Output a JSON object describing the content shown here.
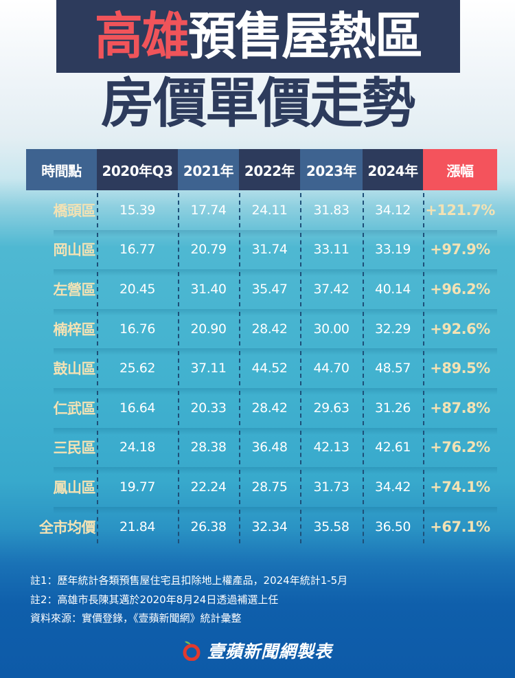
{
  "title": {
    "line1_highlight": "高雄",
    "line1_rest": "預售屋熱區",
    "line2": "房價單價走勢"
  },
  "colors": {
    "navy": "#2d3b5c",
    "steel_blue": "#3e6390",
    "accent_red": "#f4535c",
    "cream": "#f3e2b4",
    "teal_bg": "#41b1cf",
    "deep_blue": "#0d5aa8"
  },
  "table": {
    "headers": [
      "時間點",
      "2020年Q3",
      "2021年",
      "2022年",
      "2023年",
      "2024年",
      "漲幅"
    ],
    "rows": [
      [
        "橋頭區",
        "15.39",
        "17.74",
        "24.11",
        "31.83",
        "34.12",
        "+121.7%"
      ],
      [
        "岡山區",
        "16.77",
        "20.79",
        "31.74",
        "33.11",
        "33.19",
        "+97.9%"
      ],
      [
        "左營區",
        "20.45",
        "31.40",
        "35.47",
        "37.42",
        "40.14",
        "+96.2%"
      ],
      [
        "楠梓區",
        "16.76",
        "20.90",
        "28.42",
        "30.00",
        "32.29",
        "+92.6%"
      ],
      [
        "鼓山區",
        "25.62",
        "37.11",
        "44.52",
        "44.70",
        "48.57",
        "+89.5%"
      ],
      [
        "仁武區",
        "16.64",
        "20.33",
        "28.42",
        "29.63",
        "31.26",
        "+87.8%"
      ],
      [
        "三民區",
        "24.18",
        "28.38",
        "36.48",
        "42.13",
        "42.61",
        "+76.2%"
      ],
      [
        "鳳山區",
        "19.77",
        "22.24",
        "28.75",
        "31.73",
        "34.42",
        "+74.1%"
      ],
      [
        "全市均價",
        "21.84",
        "26.38",
        "32.34",
        "35.58",
        "36.50",
        "+67.1%"
      ]
    ]
  },
  "notes": [
    "註1：歷年統計各類預售屋住宅且扣除地上權產品，2024年統計1-5月",
    "註2：高雄市長陳其邁於2020年8月24日透過補選上任",
    "資料來源：實價登錄，《壹蘋新聞網》統計彙整"
  ],
  "footer": {
    "brand_icon": "apple-icon",
    "brand_text": "壹蘋新聞網製表"
  },
  "chart_data": {
    "type": "table",
    "title": "高雄預售屋熱區 房價單價走勢",
    "columns": [
      "時間點",
      "2020年Q3",
      "2021年",
      "2022年",
      "2023年",
      "2024年",
      "漲幅"
    ],
    "categories": [
      "2020年Q3",
      "2021年",
      "2022年",
      "2023年",
      "2024年"
    ],
    "series": [
      {
        "name": "橋頭區",
        "values": [
          15.39,
          17.74,
          24.11,
          31.83,
          34.12
        ],
        "change": "+121.7%"
      },
      {
        "name": "岡山區",
        "values": [
          16.77,
          20.79,
          31.74,
          33.11,
          33.19
        ],
        "change": "+97.9%"
      },
      {
        "name": "左營區",
        "values": [
          20.45,
          31.4,
          35.47,
          37.42,
          40.14
        ],
        "change": "+96.2%"
      },
      {
        "name": "楠梓區",
        "values": [
          16.76,
          20.9,
          28.42,
          30.0,
          32.29
        ],
        "change": "+92.6%"
      },
      {
        "name": "鼓山區",
        "values": [
          25.62,
          37.11,
          44.52,
          44.7,
          48.57
        ],
        "change": "+89.5%"
      },
      {
        "name": "仁武區",
        "values": [
          16.64,
          20.33,
          28.42,
          29.63,
          31.26
        ],
        "change": "+87.8%"
      },
      {
        "name": "三民區",
        "values": [
          24.18,
          28.38,
          36.48,
          42.13,
          42.61
        ],
        "change": "+76.2%"
      },
      {
        "name": "鳳山區",
        "values": [
          19.77,
          22.24,
          28.75,
          31.73,
          34.42
        ],
        "change": "+74.1%"
      },
      {
        "name": "全市均價",
        "values": [
          21.84,
          26.38,
          32.34,
          35.58,
          36.5
        ],
        "change": "+67.1%"
      }
    ],
    "annotations": [
      "註1：歷年統計各類預售屋住宅且扣除地上權產品，2024年統計1-5月",
      "註2：高雄市長陳其邁於2020年8月24日透過補選上任",
      "資料來源：實價登錄，《壹蘋新聞網》統計彙整"
    ],
    "source": "壹蘋新聞網製表"
  }
}
